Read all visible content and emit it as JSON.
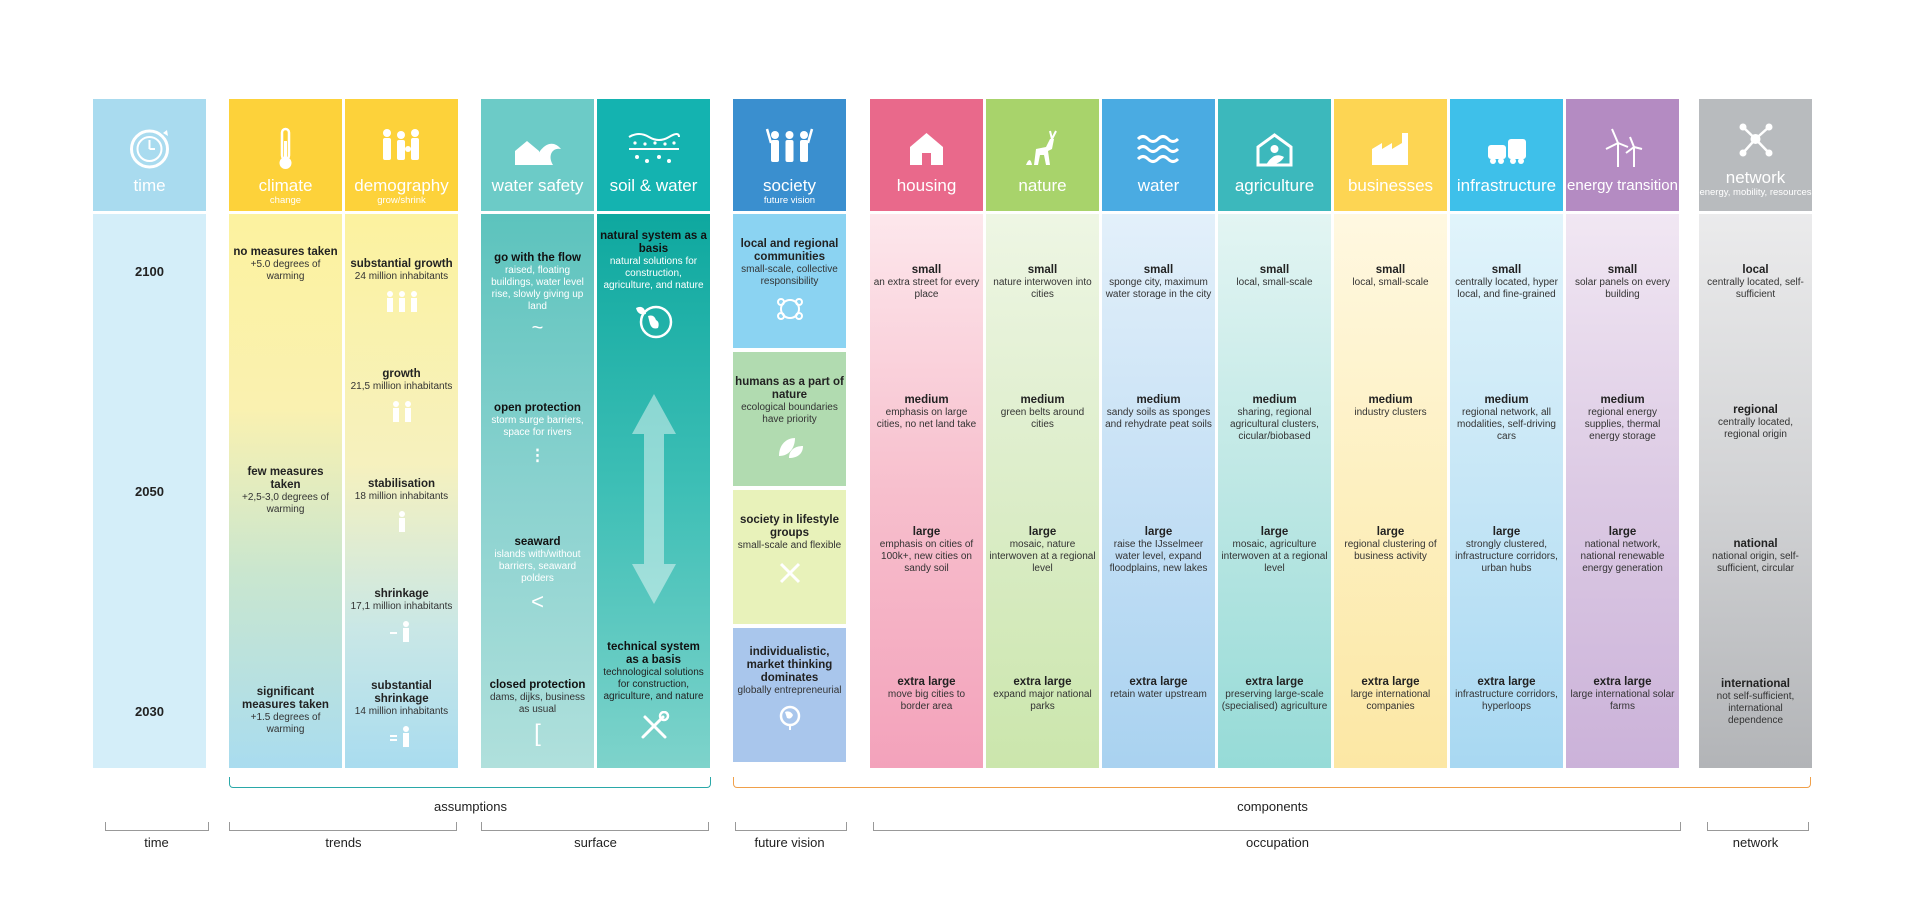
{
  "time": {
    "title": "time",
    "years": [
      "2100",
      "2050",
      "2030"
    ]
  },
  "climate": {
    "title": "climate",
    "subtitle": "change",
    "items": [
      {
        "t": "no measures taken",
        "d": "+5.0 degrees of warming"
      },
      {
        "t": "few measures taken",
        "d": "+2,5-3,0 degrees of warming"
      },
      {
        "t": "significant measures taken",
        "d": "+1.5 degrees of warming"
      }
    ]
  },
  "demography": {
    "title": "demography",
    "subtitle": "grow/shrink",
    "items": [
      {
        "t": "substantial growth",
        "d": "24 million inhabitants"
      },
      {
        "t": "growth",
        "d": "21,5 million inhabitants"
      },
      {
        "t": "stabilisation",
        "d": "18 million inhabitants"
      },
      {
        "t": "shrinkage",
        "d": "17,1 million inhabitants"
      },
      {
        "t": "substantial shrinkage",
        "d": "14 million inhabitants"
      }
    ]
  },
  "water_safety": {
    "title": "water safety",
    "items": [
      {
        "t": "go with the flow",
        "d": "raised, floating buildings, water level rise, slowly giving up land",
        "sym": "~"
      },
      {
        "t": "open protection",
        "d": "storm surge barriers, space for rivers",
        "sym": "⁝"
      },
      {
        "t": "seaward",
        "d": "islands with/without barriers, seaward polders",
        "sym": "<"
      },
      {
        "t": "closed protection",
        "d": "dams, dijks, business as usual",
        "sym": "["
      }
    ]
  },
  "soil_water": {
    "title": "soil & water",
    "items": [
      {
        "t": "natural system as a basis",
        "d": "natural solutions for construction, agriculture, and nature"
      },
      {
        "t": "technical system as a basis",
        "d": "technological solutions for construction, agriculture, and nature"
      }
    ]
  },
  "society": {
    "title": "society",
    "subtitle": "future vision",
    "items": [
      {
        "t": "local and regional communities",
        "d": "small-scale, collective responsibility"
      },
      {
        "t": "humans as a part of nature",
        "d": "ecological boundaries have priority"
      },
      {
        "t": "society in lifestyle groups",
        "d": "small-scale and flexible"
      },
      {
        "t": "individualistic, market thinking dominates",
        "d": "globally entrepreneurial"
      }
    ]
  },
  "housing": {
    "title": "housing",
    "items": [
      {
        "t": "small",
        "d": "an extra street for every place"
      },
      {
        "t": "medium",
        "d": "emphasis on large cities, no net land take"
      },
      {
        "t": "large",
        "d": "emphasis on cities of 100k+, new cities on sandy soil"
      },
      {
        "t": "extra large",
        "d": "move big cities to border area"
      }
    ]
  },
  "nature": {
    "title": "nature",
    "items": [
      {
        "t": "small",
        "d": "nature interwoven into cities"
      },
      {
        "t": "medium",
        "d": "green belts around cities"
      },
      {
        "t": "large",
        "d": "mosaic, nature interwoven at a regional level"
      },
      {
        "t": "extra large",
        "d": "expand major national parks"
      }
    ]
  },
  "water": {
    "title": "water",
    "items": [
      {
        "t": "small",
        "d": "sponge city, maximum water storage in the city"
      },
      {
        "t": "medium",
        "d": "sandy soils as sponges and rehydrate peat soils"
      },
      {
        "t": "large",
        "d": "raise the IJsselmeer water level, expand floodplains, new lakes"
      },
      {
        "t": "extra large",
        "d": "retain water upstream"
      }
    ]
  },
  "agriculture": {
    "title": "agriculture",
    "items": [
      {
        "t": "small",
        "d": "local, small-scale"
      },
      {
        "t": "medium",
        "d": "sharing, regional agricultural clusters, cicular/biobased"
      },
      {
        "t": "large",
        "d": "mosaic, agriculture interwoven at a regional level"
      },
      {
        "t": "extra large",
        "d": "preserving large-scale (specialised) agriculture"
      }
    ]
  },
  "businesses": {
    "title": "businesses",
    "items": [
      {
        "t": "small",
        "d": "local, small-scale"
      },
      {
        "t": "medium",
        "d": "industry clusters"
      },
      {
        "t": "large",
        "d": "regional clustering of business activity"
      },
      {
        "t": "extra large",
        "d": "large international companies"
      }
    ]
  },
  "infrastructure": {
    "title": "infrastructure",
    "items": [
      {
        "t": "small",
        "d": "centrally located, hyper local, and fine-grained"
      },
      {
        "t": "medium",
        "d": "regional network, all modalities, self-driving cars"
      },
      {
        "t": "large",
        "d": "strongly clustered, infrastructure corridors, urban hubs"
      },
      {
        "t": "extra large",
        "d": "infrastructure corridors, hyperloops"
      }
    ]
  },
  "energy": {
    "title": "energy transition",
    "items": [
      {
        "t": "small",
        "d": "solar panels on every building"
      },
      {
        "t": "medium",
        "d": "regional energy supplies, thermal energy storage"
      },
      {
        "t": "large",
        "d": "national network, national renewable energy generation"
      },
      {
        "t": "extra large",
        "d": "large international solar farms"
      }
    ]
  },
  "network": {
    "title": "network",
    "subtitle": "energy, mobility, resources",
    "items": [
      {
        "t": "local",
        "d": "centrally located, self-sufficient"
      },
      {
        "t": "regional",
        "d": "centrally located, regional origin"
      },
      {
        "t": "national",
        "d": "national origin, self-sufficient, circular"
      },
      {
        "t": "international",
        "d": "not self-sufficient, international dependence"
      }
    ]
  },
  "groups": {
    "assumptions": "assumptions",
    "components": "components",
    "time": "time",
    "trends": "trends",
    "surface": "surface",
    "future_vision": "future vision",
    "occupation": "occupation",
    "network": "network"
  },
  "colors": {
    "time": "#a9dbef",
    "climate": "#fdd23a",
    "demography": "#fdd23a",
    "water_safety": "#6ccbc7",
    "soil_water": "#14b3b0",
    "society": "#3a8fcf",
    "housing": "#e9698b",
    "nature": "#a8d36b",
    "water": "#4aabe2",
    "agriculture": "#3cb8bc",
    "businesses": "#fdd553",
    "infrastructure": "#3ec0ea",
    "energy": "#b48bc2",
    "network": "#b8bbbe",
    "assumptions_brace": "#2aa8a8",
    "components_brace": "#f0a04a"
  }
}
